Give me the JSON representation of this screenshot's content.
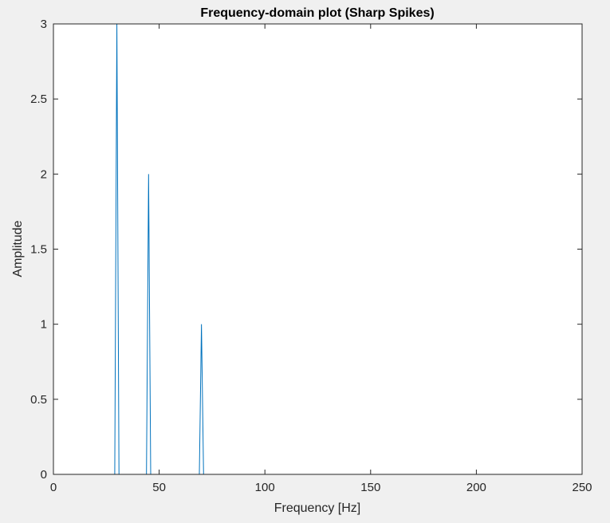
{
  "chart_data": {
    "type": "line",
    "title": "Frequency-domain plot (Sharp Spikes)",
    "xlabel": "Frequency [Hz]",
    "ylabel": "Amplitude",
    "xlim": [
      0,
      250
    ],
    "ylim": [
      0,
      3
    ],
    "xticks": [
      0,
      50,
      100,
      150,
      200,
      250
    ],
    "yticks": [
      0,
      0.5,
      1,
      1.5,
      2,
      2.5,
      3
    ],
    "grid": false,
    "series": [
      {
        "color": "#0072bd",
        "x": [
          0,
          29,
          30,
          31,
          44,
          45,
          46,
          69,
          70,
          71,
          250
        ],
        "y": [
          0,
          0,
          3,
          0,
          0,
          2,
          0,
          0,
          1,
          0,
          0
        ]
      }
    ]
  },
  "colors": {
    "figure_background": "#f0f0f0",
    "axes_background": "#ffffff",
    "axes_color": "#262626"
  }
}
